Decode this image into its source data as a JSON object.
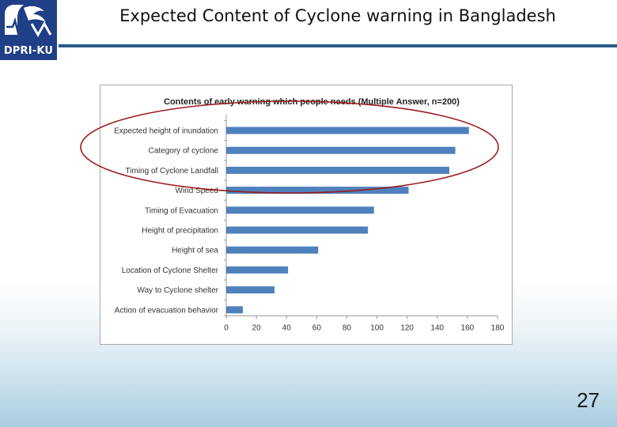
{
  "slide": {
    "title": "Expected Content of Cyclone warning in Bangladesh",
    "page_number": "27",
    "logo_text": "DPRI-KU"
  },
  "colors": {
    "bar": "#4f81bd",
    "highlight_ellipse": "#9b1c1c",
    "title_rule": "#2d5b8a",
    "logo_bg": "#1f3f86"
  },
  "chart_data": {
    "type": "bar",
    "orientation": "horizontal",
    "title": "Contents of early warning which people needs (Multiple Answer, n=200)",
    "categories": [
      "Expected height of inundation",
      "Category of cyclone",
      "Timing of Cyclone Landfall",
      "Wind Speed",
      "Timing of Evacuation",
      "Height of precipitation",
      "Height of sea",
      "Location of Cyclone Shelter",
      "Way to Cyclone shelter",
      "Action of evacuation behavior"
    ],
    "values": [
      161,
      152,
      148,
      121,
      98,
      94,
      61,
      41,
      32,
      11
    ],
    "xlim": [
      0,
      180
    ],
    "xticks": [
      "0",
      "20",
      "40",
      "60",
      "80",
      "100",
      "120",
      "140",
      "160",
      "180"
    ],
    "grid": false,
    "highlighted_categories": [
      "Expected height of inundation",
      "Category of cyclone",
      "Timing of Cyclone Landfall"
    ]
  }
}
